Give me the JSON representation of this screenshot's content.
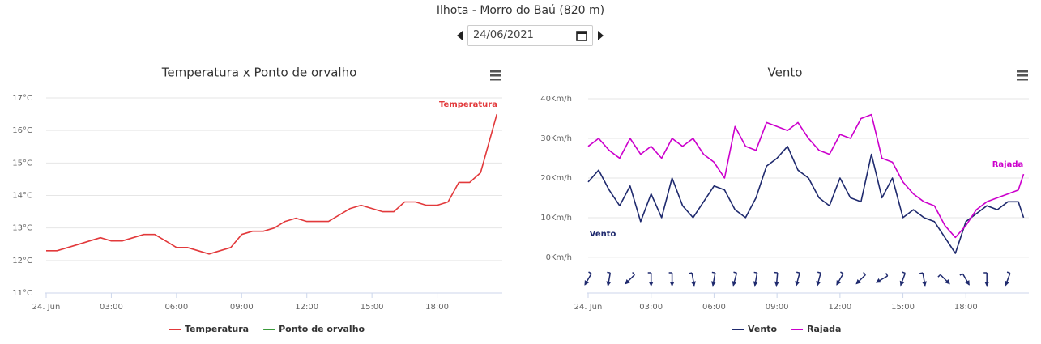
{
  "header": {
    "title": "Ilhota - Morro do Baú (820 m)",
    "date": "24/06/2021"
  },
  "chart_data": [
    {
      "type": "line",
      "title": "Temperatura x Ponto de orvalho",
      "x": [
        0,
        0.5,
        1,
        1.5,
        2,
        2.5,
        3,
        3.5,
        4,
        4.5,
        5,
        5.5,
        6,
        6.5,
        7,
        7.5,
        8,
        8.5,
        9,
        9.5,
        10,
        10.5,
        11,
        11.5,
        12,
        12.5,
        13,
        13.5,
        14,
        14.5,
        15,
        15.5,
        16,
        16.5,
        17,
        17.5,
        18,
        18.5,
        19,
        19.5,
        20,
        20.5,
        20.75
      ],
      "series": [
        {
          "name": "Temperatura",
          "color": "#e2393b",
          "values": [
            12.3,
            12.3,
            12.4,
            12.5,
            12.6,
            12.7,
            12.6,
            12.6,
            12.7,
            12.8,
            12.8,
            12.6,
            12.4,
            12.4,
            12.3,
            12.2,
            12.3,
            12.4,
            12.8,
            12.9,
            12.9,
            13.0,
            13.2,
            13.3,
            13.2,
            13.2,
            13.2,
            13.4,
            13.6,
            13.7,
            13.6,
            13.5,
            13.5,
            13.8,
            13.8,
            13.7,
            13.7,
            13.8,
            14.4,
            14.4,
            14.7,
            15.9,
            16.5
          ]
        },
        {
          "name": "Ponto de orvalho",
          "color": "#3a9a3a",
          "values": [
            null,
            null,
            null,
            null,
            null,
            null,
            null,
            null,
            null,
            null,
            null,
            null,
            null,
            null,
            null,
            null,
            null,
            null,
            null,
            null,
            null,
            null,
            null,
            null,
            null,
            null,
            null,
            null,
            null,
            null,
            null,
            null,
            null,
            null,
            null,
            null,
            null,
            null,
            null,
            null,
            null,
            null,
            null
          ]
        }
      ],
      "xlim": [
        0,
        21
      ],
      "xticks": [
        {
          "value": 0,
          "label": "24. Jun"
        },
        {
          "value": 3,
          "label": "03:00"
        },
        {
          "value": 6,
          "label": "06:00"
        },
        {
          "value": 9,
          "label": "09:00"
        },
        {
          "value": 12,
          "label": "12:00"
        },
        {
          "value": 15,
          "label": "15:00"
        },
        {
          "value": 18,
          "label": "18:00"
        }
      ],
      "ylim": [
        11,
        17
      ],
      "yticks": [
        {
          "value": 11,
          "label": "11°C"
        },
        {
          "value": 12,
          "label": "12°C"
        },
        {
          "value": 13,
          "label": "13°C"
        },
        {
          "value": 14,
          "label": "14°C"
        },
        {
          "value": 15,
          "label": "15°C"
        },
        {
          "value": 16,
          "label": "16°C"
        },
        {
          "value": 17,
          "label": "17°C"
        }
      ],
      "grid": true
    },
    {
      "type": "line",
      "title": "Vento",
      "x": [
        0,
        0.5,
        1,
        1.5,
        2,
        2.5,
        3,
        3.5,
        4,
        4.5,
        5,
        5.5,
        6,
        6.5,
        7,
        7.5,
        8,
        8.5,
        9,
        9.5,
        10,
        10.5,
        11,
        11.5,
        12,
        12.5,
        13,
        13.5,
        14,
        14.5,
        15,
        15.5,
        16,
        16.5,
        17,
        17.5,
        18,
        18.5,
        19,
        19.5,
        20,
        20.5,
        20.75
      ],
      "series": [
        {
          "name": "Vento",
          "color": "#1f2a6e",
          "values": [
            19,
            22,
            17,
            13,
            18,
            9,
            16,
            10,
            20,
            13,
            10,
            14,
            18,
            17,
            12,
            10,
            15,
            23,
            25,
            28,
            22,
            20,
            15,
            13,
            20,
            15,
            14,
            26,
            15,
            20,
            10,
            12,
            10,
            9,
            5,
            1,
            9,
            11,
            13,
            12,
            14,
            14,
            10
          ]
        },
        {
          "name": "Rajada",
          "color": "#cc00cc",
          "values": [
            28,
            30,
            27,
            25,
            30,
            26,
            28,
            25,
            30,
            28,
            30,
            26,
            24,
            20,
            33,
            28,
            27,
            34,
            33,
            32,
            34,
            30,
            27,
            26,
            31,
            30,
            35,
            36,
            25,
            24,
            19,
            16,
            14,
            13,
            8,
            5,
            8,
            12,
            14,
            15,
            16,
            17,
            21
          ]
        }
      ],
      "wind_direction": {
        "x": [
          0,
          1,
          2,
          3,
          4,
          5,
          6,
          7,
          8,
          9,
          10,
          11,
          12,
          13,
          14,
          15,
          16,
          17,
          18,
          19,
          20
        ],
        "values": [
          210,
          190,
          225,
          180,
          180,
          170,
          190,
          195,
          190,
          185,
          195,
          195,
          210,
          225,
          240,
          200,
          170,
          135,
          150,
          180,
          200
        ]
      },
      "xlim": [
        0,
        21
      ],
      "xticks": [
        {
          "value": 0,
          "label": "24. Jun"
        },
        {
          "value": 3,
          "label": "03:00"
        },
        {
          "value": 6,
          "label": "06:00"
        },
        {
          "value": 9,
          "label": "09:00"
        },
        {
          "value": 12,
          "label": "12:00"
        },
        {
          "value": 15,
          "label": "15:00"
        },
        {
          "value": 18,
          "label": "18:00"
        }
      ],
      "ylim": [
        -9,
        40
      ],
      "yticks": [
        {
          "value": 0,
          "label": "0Km/h"
        },
        {
          "value": 10,
          "label": "10Km/h"
        },
        {
          "value": 20,
          "label": "20Km/h"
        },
        {
          "value": 30,
          "label": "30Km/h"
        },
        {
          "value": 40,
          "label": "40Km/h"
        }
      ],
      "grid": true
    }
  ]
}
